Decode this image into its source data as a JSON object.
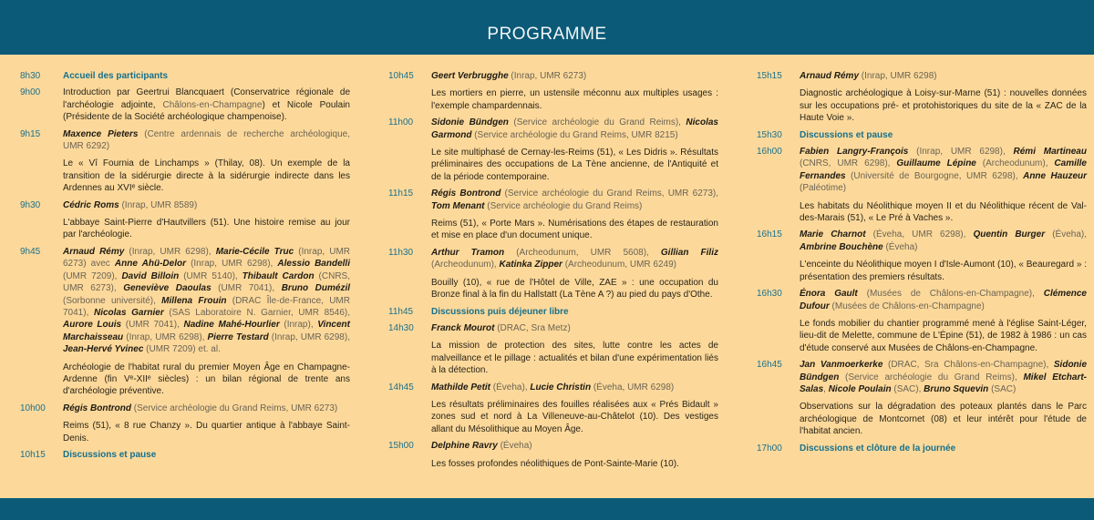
{
  "header": {
    "title": "PROGRAMME"
  },
  "colors": {
    "band": "#0b5a78",
    "background": "#fcd99b",
    "accent": "#16708c"
  },
  "columns": [
    [
      {
        "time": "8h30",
        "break": "Accueil des participants"
      },
      {
        "time": "9h00",
        "text": [
          {
            "t": "Introduction par Geertrui Blancquaert (Conservatrice régionale de l'archéologie adjointe, "
          },
          {
            "a": "Châlons-en-Champagne"
          },
          {
            "t": ") et Nicole Poulain (Présidente de la Société archéologique champenoise)."
          }
        ]
      },
      {
        "time": "9h15",
        "authors": [
          {
            "n": "Maxence Pieters"
          },
          {
            "a": " (Centre ardennais de recherche archéologique, UMR 6292)"
          }
        ],
        "title": "Le « Vî Fournia de Linchamps » (Thilay, 08). Un exemple de la transition de la sidérurgie directe à la sidérurgie indirecte dans les Ardennes au XVIᵉ siècle."
      },
      {
        "time": "9h30",
        "authors": [
          {
            "n": "Cédric Roms"
          },
          {
            "a": " (Inrap, UMR 8589)"
          }
        ],
        "title": "L'abbaye Saint-Pierre d'Hautvillers (51). Une histoire remise au jour par l'archéologie."
      },
      {
        "time": "9h45",
        "authors": [
          {
            "n": "Arnaud Rémy"
          },
          {
            "a": " (Inrap, UMR 6298), "
          },
          {
            "n": "Marie-Cécile Truc"
          },
          {
            "a": " (Inrap, UMR 6273) avec "
          },
          {
            "n": "Anne Ahü-Delor"
          },
          {
            "a": " (Inrap, UMR 6298), "
          },
          {
            "n": "Alessio Bandelli"
          },
          {
            "a": " (UMR 7209), "
          },
          {
            "n": "David Billoin"
          },
          {
            "a": " (UMR 5140), "
          },
          {
            "n": "Thibault Cardon"
          },
          {
            "a": " (CNRS, UMR 6273), "
          },
          {
            "n": "Geneviève Daoulas"
          },
          {
            "a": " (UMR 7041), "
          },
          {
            "n": "Bruno Dumézil"
          },
          {
            "a": " (Sorbonne université), "
          },
          {
            "n": "Millena Frouin"
          },
          {
            "a": " (DRAC Île-de-France, UMR 7041), "
          },
          {
            "n": "Nicolas Garnier"
          },
          {
            "a": " (SAS Laboratoire N. Garnier, UMR 8546), "
          },
          {
            "n": "Aurore Louis"
          },
          {
            "a": " (UMR 7041), "
          },
          {
            "n": "Nadine Mahé-Hourlier"
          },
          {
            "a": " (Inrap), "
          },
          {
            "n": "Vincent Marchaisseau"
          },
          {
            "a": " (Inrap, UMR 6298), "
          },
          {
            "n": "Pierre Testard"
          },
          {
            "a": " (Inrap, UMR 6298), "
          },
          {
            "n": "Jean-Hervé Yvinec"
          },
          {
            "a": " (UMR 7209) et. al."
          }
        ],
        "title": "Archéologie de l'habitat rural du premier Moyen Âge en Champagne-Ardenne (fin Vᵉ-XIIᵉ siècles) : un bilan régional de trente ans d'archéologie préventive."
      },
      {
        "time": "10h00",
        "authors": [
          {
            "n": "Régis Bontrond"
          },
          {
            "a": " (Service archéologie du Grand Reims, UMR 6273)"
          }
        ],
        "title": "Reims (51), « 8 rue Chanzy ». Du quartier antique à l'abbaye Saint-Denis."
      },
      {
        "time": "10h15",
        "break": "Discussions et pause"
      }
    ],
    [
      {
        "time": "10h45",
        "authors": [
          {
            "n": "Geert Verbrugghe"
          },
          {
            "a": " (Inrap, UMR 6273)"
          }
        ],
        "title": "Les mortiers en pierre, un ustensile méconnu aux multiples usages : l'exemple champardennais."
      },
      {
        "time": "11h00",
        "authors": [
          {
            "n": "Sidonie Bündgen"
          },
          {
            "a": " (Service archéologie du Grand Reims), "
          },
          {
            "n": "Nicolas Garmond"
          },
          {
            "a": " (Service archéologie du Grand Reims, UMR 8215)"
          }
        ],
        "title": "Le site multiphasé de Cernay-les-Reims (51), « Les Didris ». Résultats préliminaires des occupations de La Tène ancienne, de l'Antiquité et de la période contemporaine."
      },
      {
        "time": "11h15",
        "authors": [
          {
            "n": "Régis Bontrond"
          },
          {
            "a": " (Service archéologie du Grand Reims, UMR 6273), "
          },
          {
            "n": "Tom Menant"
          },
          {
            "a": " (Service archéologie du Grand Reims)"
          }
        ],
        "title": "Reims (51), « Porte Mars ». Numérisations des étapes de restauration et mise en place d'un document unique."
      },
      {
        "time": "11h30",
        "authors": [
          {
            "n": "Arthur Tramon"
          },
          {
            "a": " (Archeodunum, UMR 5608), "
          },
          {
            "n": "Gillian Filiz"
          },
          {
            "a": " (Archeodunum), "
          },
          {
            "n": "Katinka Zipper"
          },
          {
            "a": " (Archeodunum, UMR 6249)"
          }
        ],
        "title": "Bouilly (10), « rue de l'Hôtel de Ville, ZAE » : une occupation du Bronze final à la fin du Hallstatt (La Tène A ?) au pied du pays d'Othe."
      },
      {
        "time": "11h45",
        "break": "Discussions puis déjeuner libre"
      },
      {
        "time": "14h30",
        "authors": [
          {
            "n": "Franck Mourot"
          },
          {
            "a": " (DRAC, Sra Metz)"
          }
        ],
        "title": "La mission de protection des sites, lutte contre les actes de malveillance et le pillage : actualités et bilan d'une expérimentation liés à la détection."
      },
      {
        "time": "14h45",
        "authors": [
          {
            "n": "Mathilde Petit"
          },
          {
            "a": " (Éveha), "
          },
          {
            "n": "Lucie Christin"
          },
          {
            "a": " (Éveha, UMR 6298)"
          }
        ],
        "title": "Les résultats préliminaires des fouilles réalisées aux « Prés Bidault » zones sud et nord à La Villeneuve-au-Châtelot (10). Des vestiges allant du Mésolithique au Moyen Âge."
      },
      {
        "time": "15h00",
        "authors": [
          {
            "n": "Delphine Ravry"
          },
          {
            "a": " (Éveha)"
          }
        ],
        "title": "Les fosses profondes néolithiques de Pont-Sainte-Marie (10)."
      }
    ],
    [
      {
        "time": "15h15",
        "authors": [
          {
            "n": "Arnaud Rémy"
          },
          {
            "a": " (Inrap, UMR 6298)"
          }
        ],
        "title": "Diagnostic archéologique à Loisy-sur-Marne (51) : nouvelles données sur les occupations pré- et protohistoriques du site de la « ZAC de la Haute Voie »."
      },
      {
        "time": "15h30",
        "break": "Discussions et pause"
      },
      {
        "time": "16h00",
        "authors": [
          {
            "n": "Fabien Langry-François"
          },
          {
            "a": " (Inrap, UMR 6298), "
          },
          {
            "n": "Rémi Martineau"
          },
          {
            "a": " (CNRS, UMR 6298), "
          },
          {
            "n": "Guillaume Lépine"
          },
          {
            "a": " (Archeodunum), "
          },
          {
            "n": "Camille Fernandes"
          },
          {
            "a": " (Université de Bourgogne, UMR 6298), "
          },
          {
            "n": "Anne Hauzeur"
          },
          {
            "a": " (Paléotime)"
          }
        ],
        "title": "Les habitats du Néolithique moyen II et du Néolithique récent de Val-des-Marais (51), « Le Pré à Vaches »."
      },
      {
        "time": "16h15",
        "authors": [
          {
            "n": "Marie Charnot"
          },
          {
            "a": " (Éveha, UMR 6298), "
          },
          {
            "n": "Quentin Burger"
          },
          {
            "a": " (Éveha), "
          },
          {
            "n": "Ambrine Bouchène"
          },
          {
            "a": " (Éveha)"
          }
        ],
        "title": "L'enceinte du Néolithique moyen I d'Isle-Aumont (10), « Beauregard » : présentation des premiers résultats."
      },
      {
        "time": "16h30",
        "authors": [
          {
            "n": "Énora Gault"
          },
          {
            "a": " (Musées de Châlons-en-Champagne), "
          },
          {
            "n": "Clémence Dufour"
          },
          {
            "a": " (Musées de Châlons-en-Champagne)"
          }
        ],
        "title": "Le fonds mobilier du chantier programmé mené à l'église Saint-Léger, lieu-dit de Melette, commune de L'Épine (51), de 1982 à 1986 : un cas d'étude conservé aux Musées de Châlons-en-Champagne."
      },
      {
        "time": "16h45",
        "authors": [
          {
            "n": "Jan Vanmoerkerke"
          },
          {
            "a": " (DRAC, Sra Châlons-en-Champagne), "
          },
          {
            "n": "Sidonie Bündgen"
          },
          {
            "a": " (Service archéologie du Grand Reims), "
          },
          {
            "n": "Mikel Etchart-Salas"
          },
          {
            "a": ", "
          },
          {
            "n": "Nicole Poulain"
          },
          {
            "a": " (SAC), "
          },
          {
            "n": "Bruno Squevin"
          },
          {
            "a": " (SAC)"
          }
        ],
        "title": "Observations sur la dégradation des poteaux plantés dans le Parc archéologique de Montcornet (08) et leur intérêt pour l'étude de l'habitat ancien."
      },
      {
        "time": "17h00",
        "break": "Discussions et clôture de la journée"
      }
    ]
  ]
}
